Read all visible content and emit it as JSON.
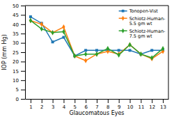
{
  "chart_data": {
    "type": "line",
    "xlabel": "Glaucomatous Eyes",
    "ylabel": "IOP (mm Hg)",
    "x": [
      1,
      2,
      3,
      4,
      5,
      6,
      7,
      8,
      9,
      10,
      11,
      12,
      13
    ],
    "xlim": [
      0.5,
      13.5
    ],
    "xticks": [
      1,
      2,
      3,
      4,
      5,
      6,
      7,
      8,
      9,
      10,
      11,
      12,
      13
    ],
    "ylim": [
      0,
      50
    ],
    "yticks": [
      0,
      5,
      10,
      15,
      20,
      25,
      30,
      35,
      40,
      45,
      50
    ],
    "grid": false,
    "legend": "upper right",
    "series": [
      {
        "name": "Tonopen-Vist",
        "marker": "square",
        "values": [
          44,
          40.5,
          30.5,
          33,
          23,
          26,
          26,
          26,
          26,
          26,
          24,
          26,
          26
        ]
      },
      {
        "name": "Schiotz-Human-\n5.5 gm wt",
        "marker": "diamond",
        "values": [
          42,
          40,
          35.5,
          38.5,
          23,
          20.5,
          24,
          25.5,
          24,
          29,
          24,
          21.5,
          25.5
        ]
      },
      {
        "name": "Schiotz-Human-\n7.5 gm wt",
        "marker": "diamond",
        "values": [
          42,
          37.5,
          35.5,
          36,
          23,
          24,
          24,
          27,
          23.5,
          29,
          24,
          22,
          27
        ]
      }
    ]
  }
}
